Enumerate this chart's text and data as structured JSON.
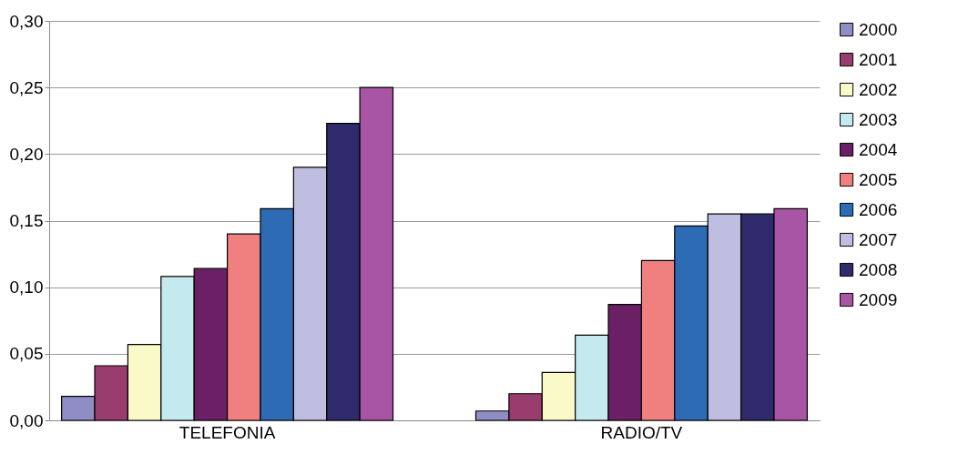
{
  "chart_data": {
    "type": "bar",
    "categories": [
      "TELEFONIA",
      "RADIO/TV"
    ],
    "series": [
      {
        "name": "2000",
        "color": "#8e8ec4",
        "values": [
          0.018,
          0.007
        ]
      },
      {
        "name": "2001",
        "color": "#993d6e",
        "values": [
          0.041,
          0.02
        ]
      },
      {
        "name": "2002",
        "color": "#fafac8",
        "values": [
          0.057,
          0.036
        ]
      },
      {
        "name": "2003",
        "color": "#c4eaf0",
        "values": [
          0.108,
          0.064
        ]
      },
      {
        "name": "2004",
        "color": "#6b2065",
        "values": [
          0.114,
          0.087
        ]
      },
      {
        "name": "2005",
        "color": "#f08080",
        "values": [
          0.14,
          0.12
        ]
      },
      {
        "name": "2006",
        "color": "#2e6bb5",
        "values": [
          0.159,
          0.146
        ]
      },
      {
        "name": "2007",
        "color": "#c0bee0",
        "values": [
          0.19,
          0.155
        ]
      },
      {
        "name": "2008",
        "color": "#2e2a6b",
        "values": [
          0.223,
          0.155
        ]
      },
      {
        "name": "2009",
        "color": "#a855a5",
        "values": [
          0.25,
          0.159
        ]
      }
    ],
    "ylim": [
      0,
      0.3
    ],
    "yticks": [
      {
        "value": 0,
        "label": "0,00"
      },
      {
        "value": 0.05,
        "label": "0,05"
      },
      {
        "value": 0.1,
        "label": "0,10"
      },
      {
        "value": 0.15,
        "label": "0,15"
      },
      {
        "value": 0.2,
        "label": "0,20"
      },
      {
        "value": 0.25,
        "label": "0,25"
      },
      {
        "value": 0.3,
        "label": "0,30"
      }
    ],
    "grid": "y",
    "legend": "right"
  }
}
